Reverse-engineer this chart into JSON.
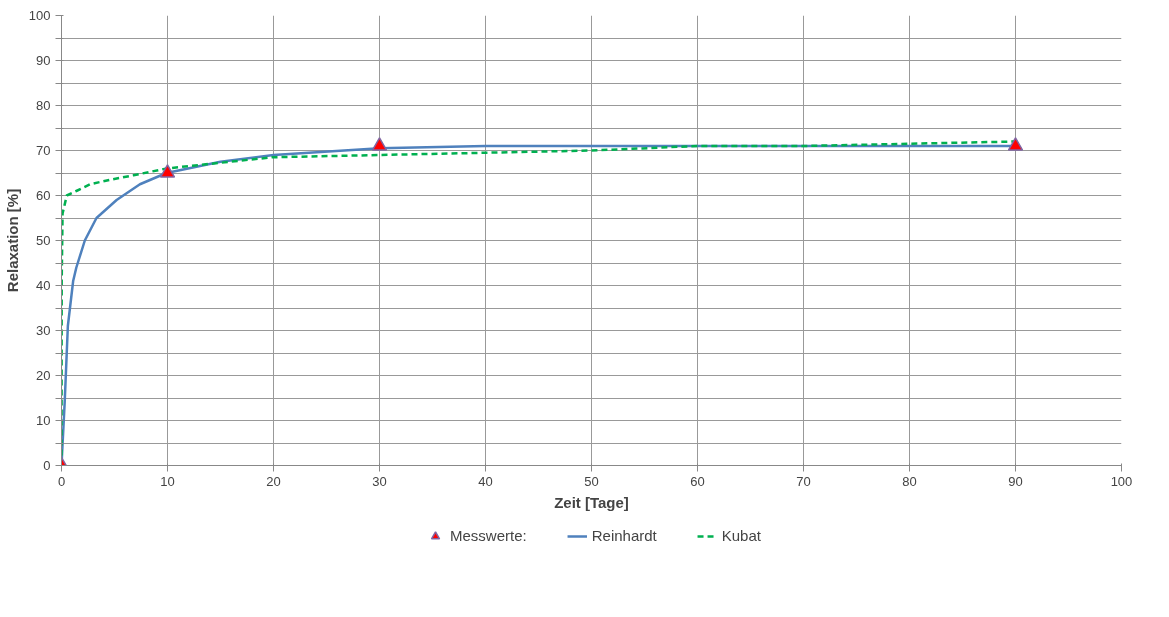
{
  "chart_data": {
    "type": "line",
    "xlabel": "Zeit [Tage]",
    "ylabel": "Relaxation [%]",
    "xlim": [
      0,
      100
    ],
    "xticks": [
      0,
      10,
      20,
      30,
      40,
      50,
      60,
      70,
      80,
      90,
      100
    ],
    "ylim": [
      0,
      100
    ],
    "yticks": [
      0,
      {
        "value": 5,
        "label": null
      },
      10,
      {
        "value": 15,
        "label": null
      },
      20,
      {
        "value": 25,
        "label": null
      },
      30,
      {
        "value": 35,
        "label": null
      },
      40,
      {
        "value": 45,
        "label": null
      },
      50,
      {
        "value": 55,
        "label": null
      },
      60,
      {
        "value": 65,
        "label": null
      },
      70,
      {
        "value": 75,
        "label": null
      },
      80,
      {
        "value": 85,
        "label": null
      },
      90,
      {
        "value": 95,
        "label": null
      },
      100
    ],
    "grid": true,
    "legend": "bottom",
    "series": [
      {
        "name": "Messwerte:",
        "type": "scatter",
        "marker": "triangle",
        "color": "#ff0000",
        "x": [
          0,
          10,
          30,
          90
        ],
        "values": [
          0,
          65,
          71,
          71
        ]
      },
      {
        "name": "Reinhardt",
        "line_style": "solid",
        "color": "#4f81bd",
        "x": [
          0,
          0.3,
          0.6,
          1.1,
          1.4,
          2.2,
          3.3,
          5.2,
          7.4,
          9.9,
          15,
          20,
          30,
          40,
          50,
          60,
          70,
          80,
          90
        ],
        "values": [
          0,
          14,
          31,
          41,
          44,
          50,
          55,
          59,
          62.5,
          65,
          67.5,
          69,
          70.5,
          71,
          71,
          71,
          71,
          71,
          71
        ]
      },
      {
        "name": "Kubat",
        "line_style": "dashed",
        "color": "#00b050",
        "x": [
          0,
          0.02,
          0.1,
          0.5,
          1.4,
          2.7,
          4.6,
          6.8,
          9.9,
          19.9,
          30,
          40,
          50,
          60,
          70,
          80,
          90
        ],
        "values": [
          0,
          41,
          56,
          60,
          61,
          62.5,
          63.5,
          64.5,
          66,
          68.5,
          69,
          69.5,
          70,
          71,
          71,
          71.5,
          72
        ]
      }
    ]
  }
}
